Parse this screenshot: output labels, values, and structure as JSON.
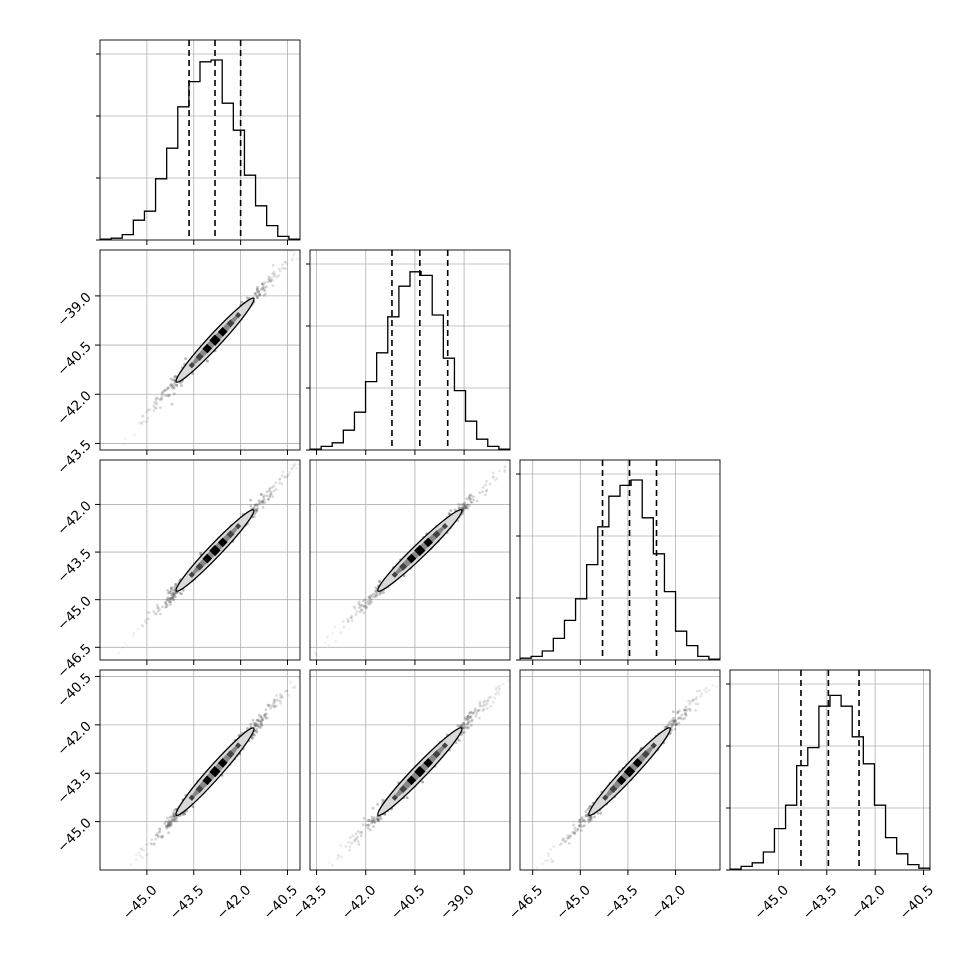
{
  "chart_data": {
    "type": "corner",
    "title": "",
    "grid": true,
    "n_params": 4,
    "colors": {
      "line": "#000000",
      "grid": "#b0b0b0",
      "contour_fill": "#d9d9d9",
      "scatter": "#555555"
    },
    "params": [
      {
        "range": [
          -46.5,
          -40.1
        ],
        "ticks": [
          -45.0,
          -43.5,
          -42.0,
          -40.5
        ],
        "tick_labels": [
          "−45.0",
          "−43.5",
          "−42.0",
          "−40.5"
        ],
        "quantiles": [
          -43.65,
          -42.82,
          -42.0
        ]
      },
      {
        "range": [
          -43.7,
          -37.6
        ],
        "ticks": [
          -43.5,
          -42.0,
          -40.5,
          -39.0
        ],
        "tick_labels": [
          "−43.5",
          "−42.0",
          "−40.5",
          "−39.0"
        ],
        "quantiles": [
          -41.2,
          -40.35,
          -39.5
        ]
      },
      {
        "range": [
          -46.9,
          -40.6
        ],
        "ticks": [
          -46.5,
          -45.0,
          -43.5,
          -42.0
        ],
        "tick_labels": [
          "−46.5",
          "−45.0",
          "−43.5",
          "−42.0"
        ],
        "quantiles": [
          -44.3,
          -43.45,
          -42.6
        ]
      },
      {
        "range": [
          -46.5,
          -40.3
        ],
        "ticks": [
          -45.0,
          -43.5,
          -42.0,
          -40.5
        ],
        "tick_labels": [
          "−45.0",
          "−43.5",
          "−42.0",
          "−40.5"
        ],
        "quantiles": [
          -44.3,
          -43.45,
          -42.5
        ]
      }
    ],
    "histograms": [
      [
        0.005,
        0.01,
        0.03,
        0.11,
        0.16,
        0.34,
        0.51,
        0.74,
        0.88,
        0.99,
        1.0,
        0.76,
        0.61,
        0.36,
        0.19,
        0.08,
        0.02,
        0.005
      ],
      [
        0.005,
        0.02,
        0.04,
        0.11,
        0.21,
        0.38,
        0.54,
        0.74,
        0.91,
        0.99,
        0.97,
        0.75,
        0.51,
        0.33,
        0.16,
        0.06,
        0.02,
        0.005
      ],
      [
        0.01,
        0.02,
        0.05,
        0.12,
        0.22,
        0.34,
        0.53,
        0.74,
        0.91,
        0.97,
        1.0,
        0.79,
        0.59,
        0.38,
        0.16,
        0.08,
        0.02,
        0.005
      ],
      [
        0.005,
        0.02,
        0.04,
        0.1,
        0.23,
        0.36,
        0.58,
        0.68,
        0.91,
        0.97,
        0.91,
        0.74,
        0.59,
        0.36,
        0.18,
        0.09,
        0.03,
        0.01
      ]
    ],
    "correlations": {
      "1-0": 0.995,
      "2-0": 0.995,
      "2-1": 0.995,
      "3-0": 0.995,
      "3-1": 0.995,
      "3-2": 0.995
    }
  }
}
